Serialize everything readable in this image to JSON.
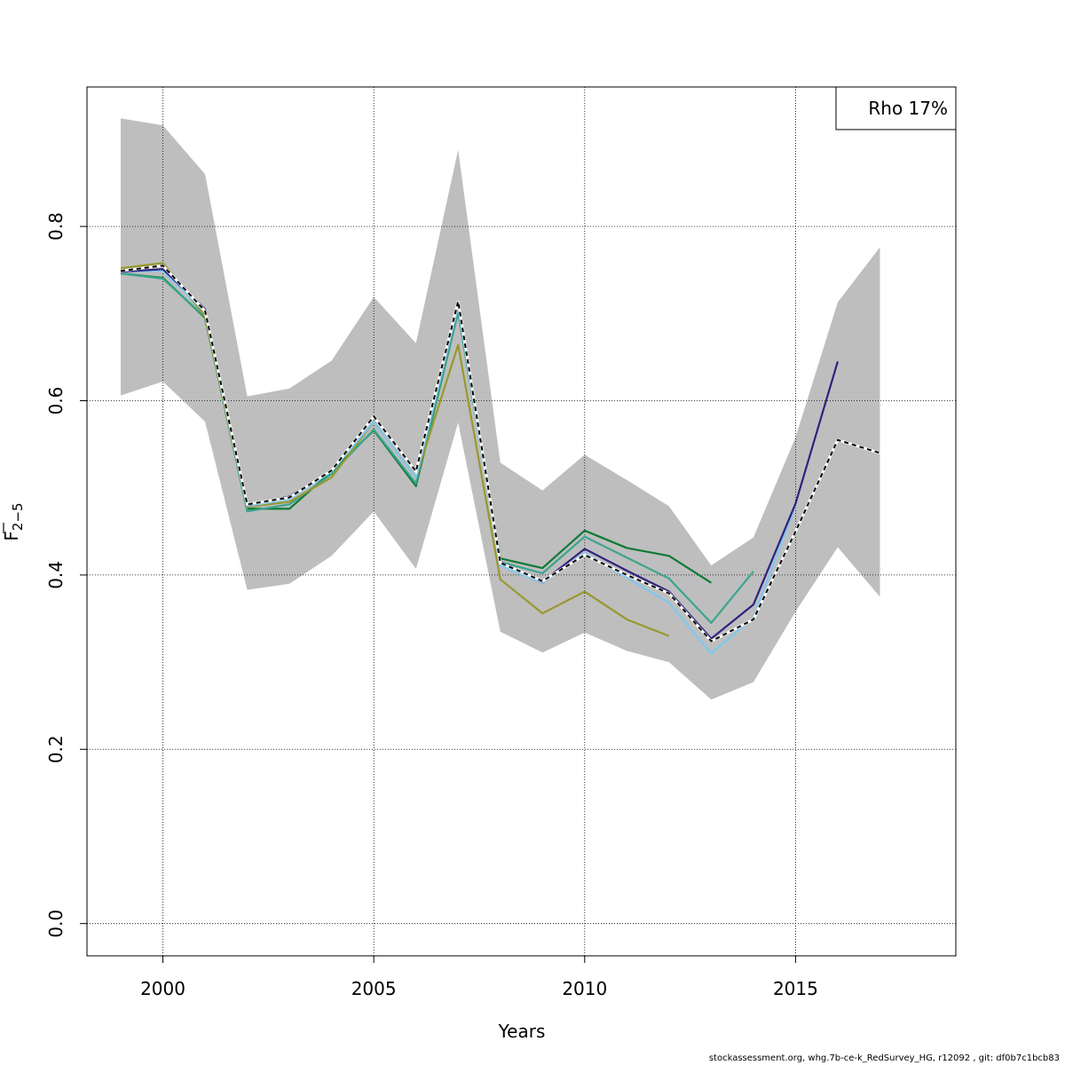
{
  "footer_text": "stockassessment.org, whg.7b-ce-k_RedSurvey_HG, r12092 , git: df0b7c1bcb83",
  "chart_data": {
    "type": "line",
    "title": "",
    "xlabel": "Years",
    "ylabel_main": "F",
    "ylabel_sub": "2−5",
    "xlim": [
      1998.2,
      2018.8
    ],
    "ylim": [
      -0.037,
      0.96
    ],
    "x_ticks": [
      2000,
      2005,
      2010,
      2015
    ],
    "x_tick_labels": [
      "2000",
      "2005",
      "2010",
      "2015"
    ],
    "y_ticks": [
      0.0,
      0.2,
      0.4,
      0.6,
      0.8
    ],
    "y_tick_labels": [
      "0.0",
      "0.2",
      "0.4",
      "0.6",
      "0.8"
    ],
    "grid": true,
    "legend": {
      "position": "top-right",
      "text": "Rho 17%"
    },
    "band_color": "#bebebe",
    "confidence_band": {
      "x": [
        1999,
        2000,
        2001,
        2002,
        2003,
        2004,
        2005,
        2006,
        2007,
        2008,
        2009,
        2010,
        2011,
        2012,
        2013,
        2014,
        2015,
        2016,
        2017
      ],
      "lower": [
        0.606,
        0.622,
        0.576,
        0.383,
        0.39,
        0.422,
        0.473,
        0.407,
        0.575,
        0.335,
        0.311,
        0.334,
        0.313,
        0.3,
        0.257,
        0.277,
        0.358,
        0.432,
        0.375
      ],
      "upper": [
        0.924,
        0.916,
        0.86,
        0.605,
        0.614,
        0.646,
        0.719,
        0.666,
        0.888,
        0.529,
        0.497,
        0.538,
        0.509,
        0.479,
        0.411,
        0.443,
        0.558,
        0.713,
        0.776
      ]
    },
    "series": [
      {
        "color": "#0e7a35",
        "x": [
          1999,
          2000,
          2001,
          2002,
          2003,
          2004,
          2005,
          2006,
          2007,
          2008,
          2009,
          2010,
          2011,
          2012,
          2013
        ],
        "values": [
          0.746,
          0.741,
          0.695,
          0.476,
          0.476,
          0.519,
          0.566,
          0.502,
          0.702,
          0.419,
          0.408,
          0.451,
          0.431,
          0.422,
          0.391
        ]
      },
      {
        "color": "#3aa58f",
        "x": [
          1999,
          2000,
          2001,
          2002,
          2003,
          2004,
          2005,
          2006,
          2007,
          2008,
          2009,
          2010,
          2011,
          2012,
          2013,
          2014
        ],
        "values": [
          0.746,
          0.74,
          0.696,
          0.473,
          0.481,
          0.516,
          0.567,
          0.505,
          0.702,
          0.415,
          0.402,
          0.444,
          0.42,
          0.396,
          0.345,
          0.404
        ]
      },
      {
        "color": "#98982e",
        "x": [
          1999,
          2000,
          2001,
          2002,
          2003,
          2004,
          2005,
          2006,
          2007,
          2008,
          2009,
          2010,
          2011,
          2012
        ],
        "values": [
          0.752,
          0.758,
          0.697,
          0.478,
          0.484,
          0.512,
          0.576,
          0.512,
          0.664,
          0.395,
          0.356,
          0.381,
          0.349,
          0.33
        ]
      },
      {
        "color": "#7fc8ee",
        "x": [
          1999,
          2000,
          2001,
          2002,
          2003,
          2004,
          2005,
          2006,
          2007,
          2008,
          2009,
          2010,
          2011,
          2012,
          2013,
          2014,
          2015
        ],
        "values": [
          0.748,
          0.749,
          0.702,
          0.479,
          0.487,
          0.519,
          0.576,
          0.512,
          0.709,
          0.411,
          0.391,
          0.425,
          0.397,
          0.368,
          0.31,
          0.351,
          0.48
        ]
      },
      {
        "color": "#2e2180",
        "x": [
          1999,
          2000,
          2001,
          2002,
          2003,
          2004,
          2005,
          2006,
          2007,
          2008,
          2009,
          2010,
          2011,
          2012,
          2013,
          2014,
          2015,
          2016
        ],
        "values": [
          0.748,
          0.751,
          0.705,
          0.48,
          0.49,
          0.52,
          0.582,
          0.519,
          0.712,
          0.415,
          0.392,
          0.43,
          0.405,
          0.381,
          0.327,
          0.366,
          0.482,
          0.645
        ]
      },
      {
        "color": "#000000",
        "dashed": true,
        "x": [
          1999,
          2000,
          2001,
          2002,
          2003,
          2004,
          2005,
          2006,
          2007,
          2008,
          2009,
          2010,
          2011,
          2012,
          2013,
          2014,
          2015,
          2016,
          2017
        ],
        "values": [
          0.749,
          0.755,
          0.703,
          0.481,
          0.489,
          0.52,
          0.582,
          0.519,
          0.714,
          0.414,
          0.393,
          0.423,
          0.4,
          0.379,
          0.324,
          0.349,
          0.45,
          0.555,
          0.54
        ]
      }
    ]
  }
}
